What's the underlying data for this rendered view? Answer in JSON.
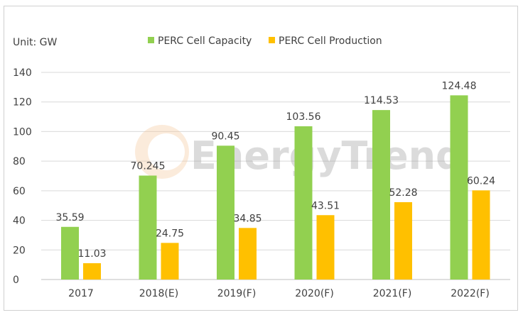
{
  "chart_data": {
    "type": "bar",
    "unit_label": "Unit: GW",
    "categories": [
      "2017",
      "2018(E)",
      "2019(F)",
      "2020(F)",
      "2021(F)",
      "2022(F)"
    ],
    "series": [
      {
        "name": "PERC Cell Capacity",
        "color": "#92d050",
        "values": [
          35.59,
          70.245,
          90.45,
          103.56,
          114.53,
          124.48
        ],
        "labels": [
          "35.59",
          "70.245",
          "90.45",
          "103.56",
          "114.53",
          "124.48"
        ]
      },
      {
        "name": "PERC Cell Production",
        "color": "#ffc000",
        "values": [
          11.03,
          24.75,
          34.85,
          43.51,
          52.28,
          60.24
        ],
        "labels": [
          "11.03",
          "24.75",
          "34.85",
          "43.51",
          "52.28",
          "60.24"
        ]
      }
    ],
    "ylim": [
      0,
      140
    ],
    "yticks": [
      "0",
      "20",
      "40",
      "60",
      "80",
      "100",
      "120",
      "140"
    ],
    "grid": true,
    "legend": "top-center",
    "watermark": "EnergyTrend"
  }
}
